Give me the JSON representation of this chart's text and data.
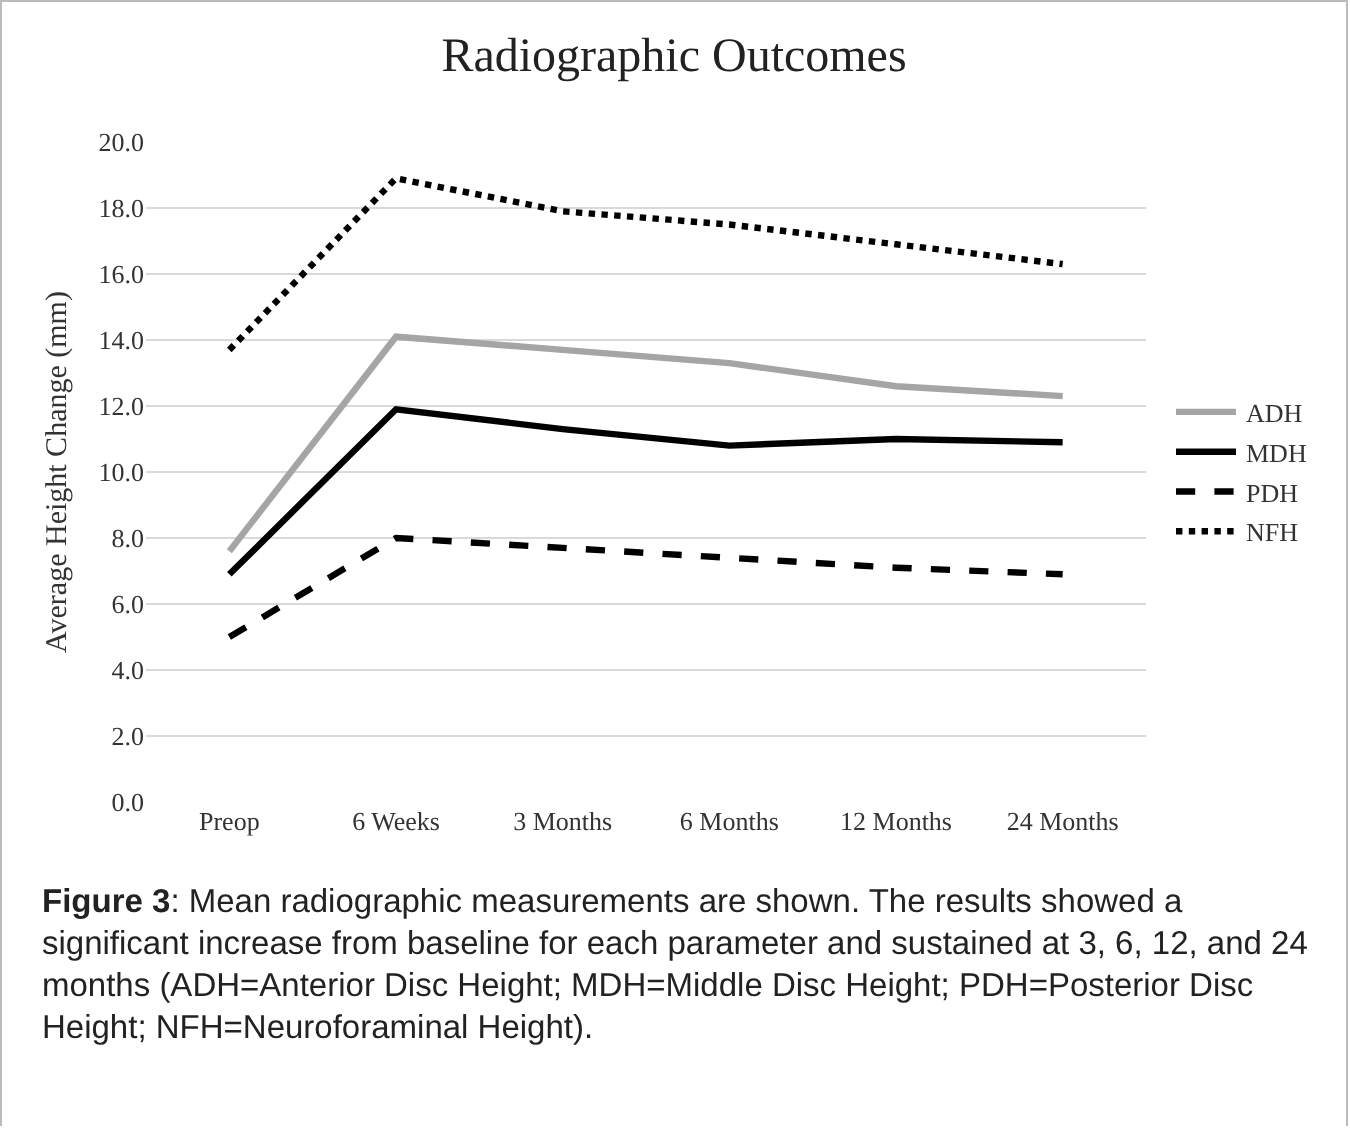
{
  "chart_data": {
    "type": "line",
    "title": "Radiographic Outcomes",
    "ylabel": "Average Height Change (mm)",
    "categories": [
      "Preop",
      "6 Weeks",
      "3 Months",
      "6 Months",
      "12 Months",
      "24 Months"
    ],
    "series": [
      {
        "name": "ADH",
        "color": "#a5a5a5",
        "line_style": "solid",
        "values": [
          7.6,
          14.1,
          13.7,
          13.3,
          12.6,
          12.3
        ]
      },
      {
        "name": "MDH",
        "color": "#000000",
        "line_style": "solid",
        "values": [
          6.9,
          11.9,
          11.3,
          10.8,
          11.0,
          10.9
        ]
      },
      {
        "name": "PDH",
        "color": "#000000",
        "line_style": "dashed",
        "values": [
          5.0,
          8.0,
          7.7,
          7.4,
          7.1,
          6.9
        ]
      },
      {
        "name": "NFH",
        "color": "#000000",
        "line_style": "dotted",
        "values": [
          13.7,
          18.9,
          17.9,
          17.5,
          16.9,
          16.3
        ]
      }
    ],
    "ylim": [
      0,
      20
    ],
    "yticks": [
      {
        "value": 0,
        "label": "0.0"
      },
      {
        "value": 2,
        "label": "2.0"
      },
      {
        "value": 4,
        "label": "4.0"
      },
      {
        "value": 6,
        "label": "6.0"
      },
      {
        "value": 8,
        "label": "8.0"
      },
      {
        "value": 10,
        "label": "10.0"
      },
      {
        "value": 12,
        "label": "12.0"
      },
      {
        "value": 14,
        "label": "14.0"
      },
      {
        "value": 16,
        "label": "16.0"
      },
      {
        "value": 18,
        "label": "18.0"
      },
      {
        "value": 20,
        "label": "20.0"
      }
    ],
    "grid": "y",
    "legend": "right",
    "marker": "none",
    "annotations": [
      "Figure 3: Mean radiographic measurements are shown. The results showed a significant increase from baseline for each parameter and sustained at 3, 6, 12, and 24 months (ADH=Anterior Disc Height; MDH=Middle Disc Height; PDH=Posterior Disc Height; NFH=Neuroforaminal Height)."
    ]
  }
}
